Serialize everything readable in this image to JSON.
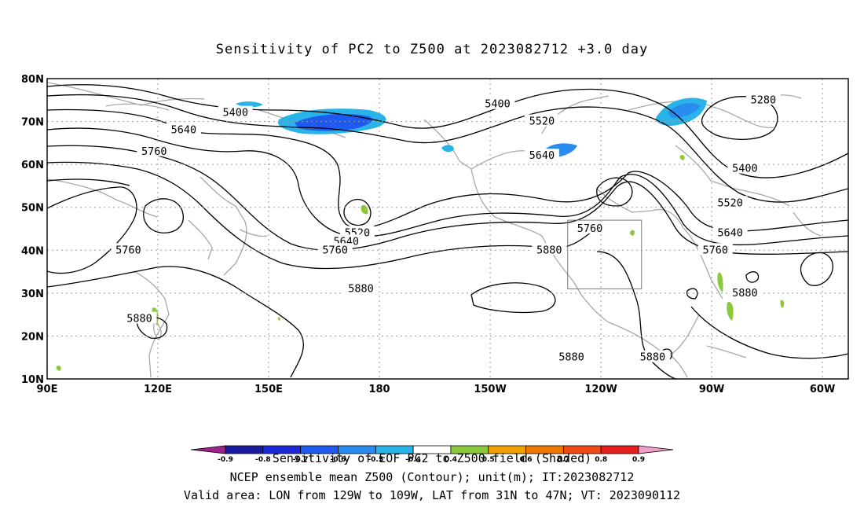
{
  "title": "Sensitivity of PC2 to Z500 at 2023082712 +3.0 day",
  "axes": {
    "x_ticks": [
      "90E",
      "120E",
      "150E",
      "180",
      "150W",
      "120W",
      "90W",
      "60W"
    ],
    "y_ticks": [
      "10N",
      "20N",
      "30N",
      "40N",
      "50N",
      "60N",
      "70N",
      "80N"
    ],
    "lon_range": [
      90,
      307
    ],
    "lat_range": [
      10,
      80
    ],
    "grid": "dotted"
  },
  "contours": {
    "interval_m": 120,
    "labels": [
      {
        "text": "5400",
        "lon": 141,
        "lat": 72
      },
      {
        "text": "5400",
        "lon": 212,
        "lat": 74
      },
      {
        "text": "5520",
        "lon": 224,
        "lat": 70
      },
      {
        "text": "5280",
        "lon": 284,
        "lat": 75
      },
      {
        "text": "5400",
        "lon": 279,
        "lat": 59
      },
      {
        "text": "5520",
        "lon": 275,
        "lat": 51
      },
      {
        "text": "5640",
        "lon": 275,
        "lat": 44
      },
      {
        "text": "5760",
        "lon": 271,
        "lat": 40
      },
      {
        "text": "5640",
        "lon": 127,
        "lat": 68
      },
      {
        "text": "5760",
        "lon": 119,
        "lat": 63
      },
      {
        "text": "5520",
        "lon": 174,
        "lat": 44
      },
      {
        "text": "5640",
        "lon": 171,
        "lat": 42
      },
      {
        "text": "5760",
        "lon": 168,
        "lat": 40
      },
      {
        "text": "5880",
        "lon": 175,
        "lat": 31
      },
      {
        "text": "5760",
        "lon": 112,
        "lat": 40
      },
      {
        "text": "5880",
        "lon": 115,
        "lat": 24
      },
      {
        "text": "5640",
        "lon": 224,
        "lat": 62
      },
      {
        "text": "5760",
        "lon": 237,
        "lat": 45
      },
      {
        "text": "5880",
        "lon": 226,
        "lat": 40
      },
      {
        "text": "5880",
        "lon": 232,
        "lat": 15
      },
      {
        "text": "5880",
        "lon": 254,
        "lat": 15
      },
      {
        "text": "5880",
        "lon": 279,
        "lat": 30
      }
    ]
  },
  "valid_box": {
    "lon_min": 231,
    "lon_max": 251,
    "lat_min": 31,
    "lat_max": 47
  },
  "colorbar": {
    "colors": [
      "#a0208c",
      "#1a1aa0",
      "#1e28d8",
      "#1e5af0",
      "#2a8cf0",
      "#28b4e8",
      "#ffffff",
      "#8cc83c",
      "#f0a000",
      "#f07800",
      "#f04a14",
      "#e61e1e",
      "#f0a0c8"
    ],
    "tick_labels": [
      "-0.9",
      "-0.8",
      "-0.7",
      "-0.6",
      "-0.5",
      "-0.4",
      "0.4",
      "0.5",
      "0.6",
      "0.7",
      "0.8",
      "0.9"
    ]
  },
  "captions": [
    "Sensitivity of EOF PC2 to Z500 field (Shaded)",
    "NCEP ensemble mean Z500 (Contour); unit(m); IT:2023082712",
    "Valid area: LON from 129W to 109W, LAT from 31N to 47N; VT: 2023090112"
  ]
}
